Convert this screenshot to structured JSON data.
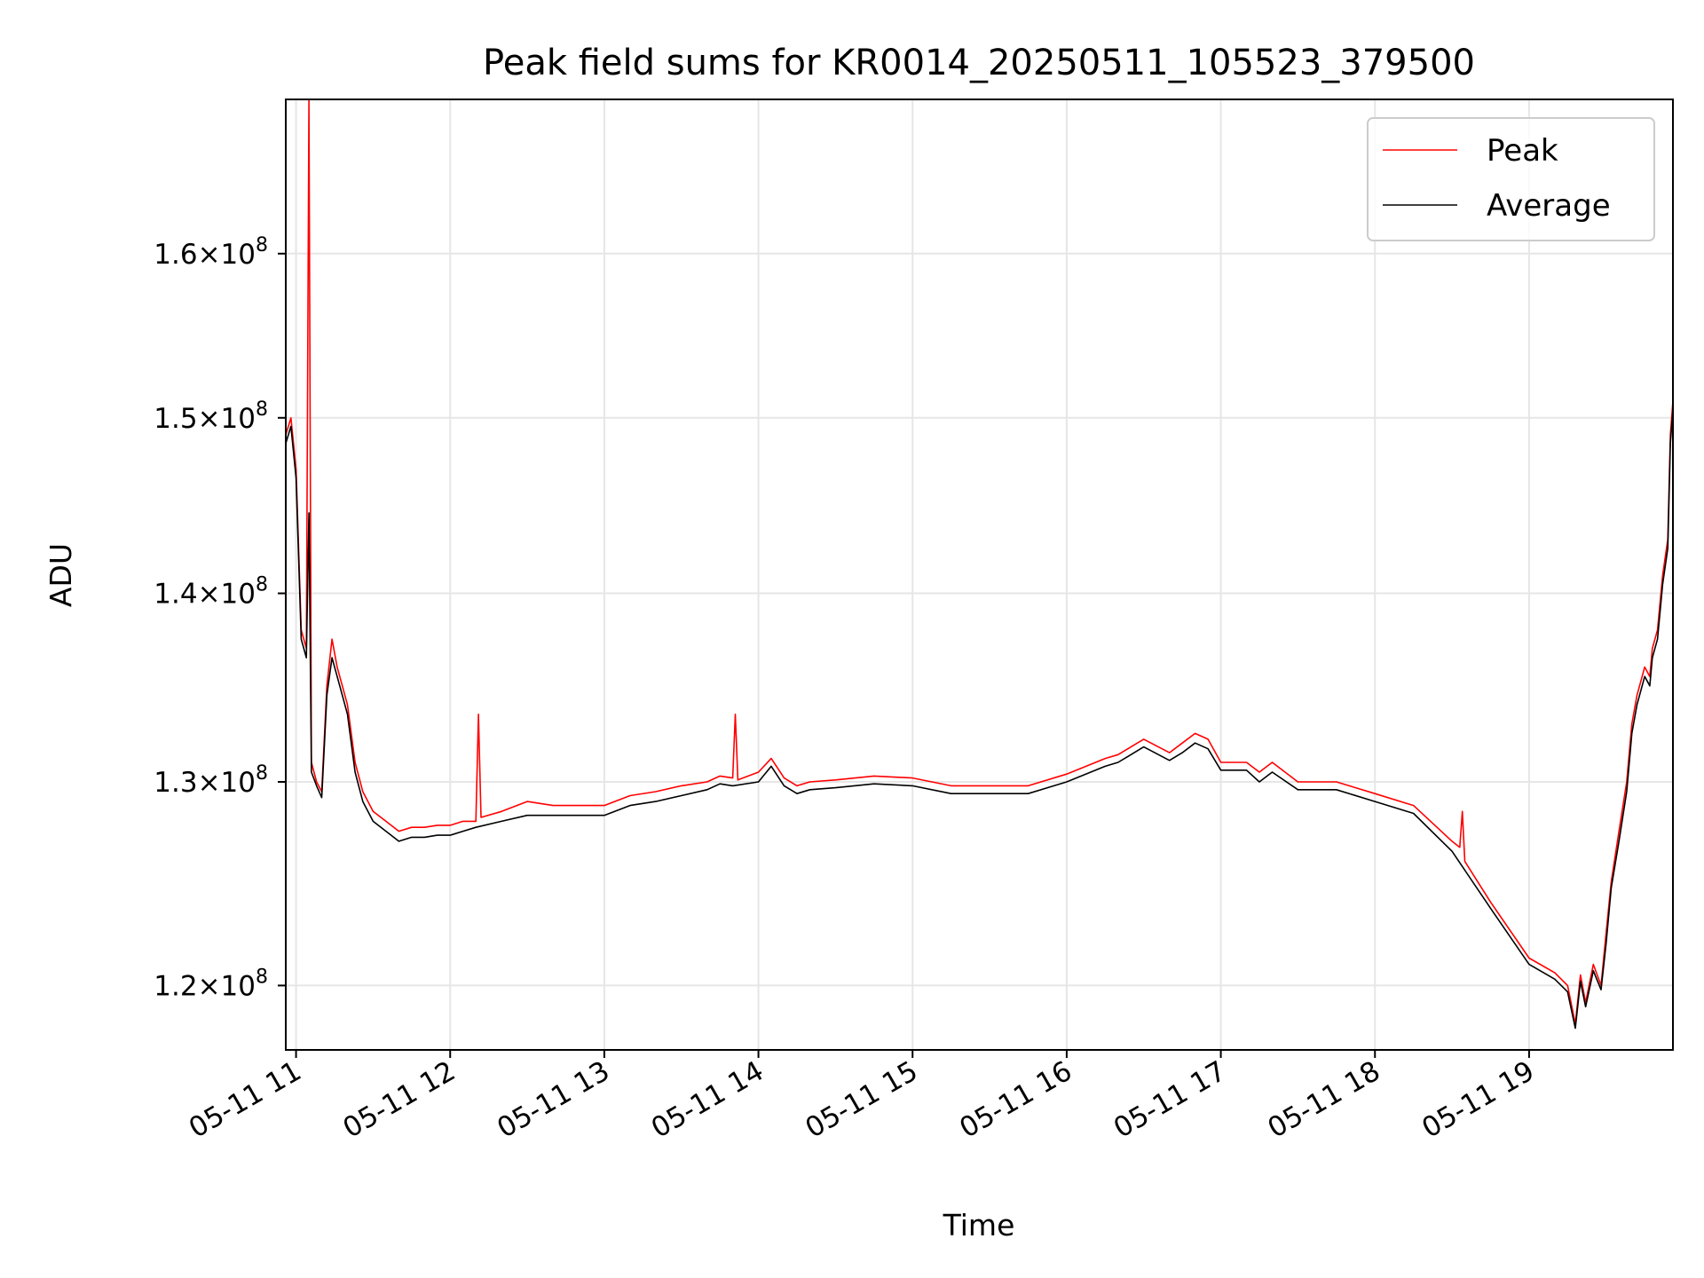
{
  "chart_data": {
    "type": "line",
    "title": "Peak field sums for KR0014_20250511_105523_379500",
    "xlabel": "Time",
    "ylabel": "ADU",
    "y_scale": "log",
    "xlim": [
      "2025-05-11 10:56",
      "2025-05-11 19:56"
    ],
    "ylim": [
      117000000,
      170000000
    ],
    "grid": true,
    "legend_position": "upper right",
    "x_ticks": [
      "05-11 11",
      "05-11 12",
      "05-11 13",
      "05-11 14",
      "05-11 15",
      "05-11 16",
      "05-11 17",
      "05-11 18",
      "05-11 19"
    ],
    "y_ticks": [
      {
        "value": 120000000,
        "mantissa": "1.2",
        "times": "×",
        "base": "10",
        "exp": "8"
      },
      {
        "value": 130000000,
        "mantissa": "1.3",
        "times": "×",
        "base": "10",
        "exp": "8"
      },
      {
        "value": 140000000,
        "mantissa": "1.4",
        "times": "×",
        "base": "10",
        "exp": "8"
      },
      {
        "value": 150000000,
        "mantissa": "1.5",
        "times": "×",
        "base": "10",
        "exp": "8"
      },
      {
        "value": 160000000,
        "mantissa": "1.6",
        "times": "×",
        "base": "10",
        "exp": "8"
      }
    ],
    "series": [
      {
        "name": "Peak",
        "color": "#ff0000",
        "x": [
          "2025-05-11 10:56",
          "2025-05-11 10:58",
          "2025-05-11 11:00",
          "2025-05-11 11:02",
          "2025-05-11 11:03",
          "2025-05-11 11:04",
          "2025-05-11 11:05",
          "2025-05-11 11:06",
          "2025-05-11 11:08",
          "2025-05-11 11:10",
          "2025-05-11 11:12",
          "2025-05-11 11:14",
          "2025-05-11 11:16",
          "2025-05-11 11:18",
          "2025-05-11 11:20",
          "2025-05-11 11:23",
          "2025-05-11 11:26",
          "2025-05-11 11:30",
          "2025-05-11 11:35",
          "2025-05-11 11:40",
          "2025-05-11 11:45",
          "2025-05-11 11:50",
          "2025-05-11 11:55",
          "2025-05-11 12:00",
          "2025-05-11 12:05",
          "2025-05-11 12:10",
          "2025-05-11 12:11",
          "2025-05-11 12:12",
          "2025-05-11 12:20",
          "2025-05-11 12:30",
          "2025-05-11 12:40",
          "2025-05-11 12:50",
          "2025-05-11 13:00",
          "2025-05-11 13:10",
          "2025-05-11 13:20",
          "2025-05-11 13:30",
          "2025-05-11 13:40",
          "2025-05-11 13:45",
          "2025-05-11 13:50",
          "2025-05-11 13:51",
          "2025-05-11 13:52",
          "2025-05-11 14:00",
          "2025-05-11 14:05",
          "2025-05-11 14:10",
          "2025-05-11 14:15",
          "2025-05-11 14:20",
          "2025-05-11 14:30",
          "2025-05-11 14:45",
          "2025-05-11 15:00",
          "2025-05-11 15:15",
          "2025-05-11 15:30",
          "2025-05-11 15:45",
          "2025-05-11 16:00",
          "2025-05-11 16:15",
          "2025-05-11 16:20",
          "2025-05-11 16:25",
          "2025-05-11 16:30",
          "2025-05-11 16:40",
          "2025-05-11 16:45",
          "2025-05-11 16:50",
          "2025-05-11 16:55",
          "2025-05-11 17:00",
          "2025-05-11 17:10",
          "2025-05-11 17:15",
          "2025-05-11 17:20",
          "2025-05-11 17:30",
          "2025-05-11 17:45",
          "2025-05-11 18:00",
          "2025-05-11 18:15",
          "2025-05-11 18:30",
          "2025-05-11 18:33",
          "2025-05-11 18:34",
          "2025-05-11 18:35",
          "2025-05-11 18:45",
          "2025-05-11 19:00",
          "2025-05-11 19:10",
          "2025-05-11 19:15",
          "2025-05-11 19:18",
          "2025-05-11 19:20",
          "2025-05-11 19:22",
          "2025-05-11 19:25",
          "2025-05-11 19:28",
          "2025-05-11 19:30",
          "2025-05-11 19:32",
          "2025-05-11 19:35",
          "2025-05-11 19:38",
          "2025-05-11 19:40",
          "2025-05-11 19:42",
          "2025-05-11 19:45",
          "2025-05-11 19:47",
          "2025-05-11 19:48",
          "2025-05-11 19:50",
          "2025-05-11 19:52",
          "2025-05-11 19:54",
          "2025-05-11 19:55",
          "2025-05-11 19:56"
        ],
        "values": [
          149000000,
          150000000,
          147000000,
          138000000,
          137500000,
          137000000,
          170000000,
          131000000,
          130000000,
          129500000,
          135000000,
          137500000,
          136000000,
          135000000,
          134000000,
          131000000,
          129500000,
          128500000,
          128000000,
          127500000,
          127700000,
          127700000,
          127800000,
          127800000,
          128000000,
          128000000,
          133500000,
          128200000,
          128500000,
          129000000,
          128800000,
          128800000,
          128800000,
          129300000,
          129500000,
          129800000,
          130000000,
          130300000,
          130200000,
          133500000,
          130100000,
          130500000,
          131200000,
          130200000,
          129800000,
          130000000,
          130100000,
          130300000,
          130200000,
          129800000,
          129800000,
          129800000,
          130400000,
          131200000,
          131400000,
          131800000,
          132200000,
          131500000,
          132000000,
          132500000,
          132200000,
          131000000,
          131000000,
          130500000,
          131000000,
          130000000,
          130000000,
          129400000,
          128800000,
          127000000,
          126700000,
          128500000,
          126000000,
          124000000,
          121300000,
          120600000,
          120000000,
          118200000,
          120500000,
          119200000,
          121000000,
          120000000,
          122500000,
          125000000,
          127500000,
          130000000,
          133000000,
          134500000,
          136000000,
          135500000,
          137000000,
          138000000,
          141000000,
          143000000,
          149000000,
          151000000
        ]
      },
      {
        "name": "Average",
        "color": "#000000",
        "x": [
          "2025-05-11 10:56",
          "2025-05-11 10:58",
          "2025-05-11 11:00",
          "2025-05-11 11:02",
          "2025-05-11 11:03",
          "2025-05-11 11:04",
          "2025-05-11 11:05",
          "2025-05-11 11:06",
          "2025-05-11 11:08",
          "2025-05-11 11:10",
          "2025-05-11 11:12",
          "2025-05-11 11:14",
          "2025-05-11 11:16",
          "2025-05-11 11:18",
          "2025-05-11 11:20",
          "2025-05-11 11:23",
          "2025-05-11 11:26",
          "2025-05-11 11:30",
          "2025-05-11 11:35",
          "2025-05-11 11:40",
          "2025-05-11 11:45",
          "2025-05-11 11:50",
          "2025-05-11 11:55",
          "2025-05-11 12:00",
          "2025-05-11 12:05",
          "2025-05-11 12:10",
          "2025-05-11 12:20",
          "2025-05-11 12:30",
          "2025-05-11 12:40",
          "2025-05-11 12:50",
          "2025-05-11 13:00",
          "2025-05-11 13:10",
          "2025-05-11 13:20",
          "2025-05-11 13:30",
          "2025-05-11 13:40",
          "2025-05-11 13:45",
          "2025-05-11 13:50",
          "2025-05-11 14:00",
          "2025-05-11 14:05",
          "2025-05-11 14:10",
          "2025-05-11 14:15",
          "2025-05-11 14:20",
          "2025-05-11 14:30",
          "2025-05-11 14:45",
          "2025-05-11 15:00",
          "2025-05-11 15:15",
          "2025-05-11 15:30",
          "2025-05-11 15:45",
          "2025-05-11 16:00",
          "2025-05-11 16:15",
          "2025-05-11 16:20",
          "2025-05-11 16:25",
          "2025-05-11 16:30",
          "2025-05-11 16:40",
          "2025-05-11 16:45",
          "2025-05-11 16:50",
          "2025-05-11 16:55",
          "2025-05-11 17:00",
          "2025-05-11 17:10",
          "2025-05-11 17:15",
          "2025-05-11 17:20",
          "2025-05-11 17:30",
          "2025-05-11 17:45",
          "2025-05-11 18:00",
          "2025-05-11 18:15",
          "2025-05-11 18:30",
          "2025-05-11 18:45",
          "2025-05-11 19:00",
          "2025-05-11 19:10",
          "2025-05-11 19:15",
          "2025-05-11 19:18",
          "2025-05-11 19:20",
          "2025-05-11 19:22",
          "2025-05-11 19:25",
          "2025-05-11 19:28",
          "2025-05-11 19:30",
          "2025-05-11 19:32",
          "2025-05-11 19:35",
          "2025-05-11 19:38",
          "2025-05-11 19:40",
          "2025-05-11 19:42",
          "2025-05-11 19:45",
          "2025-05-11 19:47",
          "2025-05-11 19:48",
          "2025-05-11 19:50",
          "2025-05-11 19:52",
          "2025-05-11 19:54",
          "2025-05-11 19:55",
          "2025-05-11 19:56"
        ],
        "values": [
          148500000,
          149500000,
          146500000,
          137500000,
          137000000,
          136500000,
          144500000,
          130500000,
          129800000,
          129200000,
          134500000,
          136500000,
          135500000,
          134500000,
          133500000,
          130500000,
          129000000,
          128000000,
          127500000,
          127000000,
          127200000,
          127200000,
          127300000,
          127300000,
          127500000,
          127700000,
          128000000,
          128300000,
          128300000,
          128300000,
          128300000,
          128800000,
          129000000,
          129300000,
          129600000,
          129900000,
          129800000,
          130000000,
          130800000,
          129800000,
          129400000,
          129600000,
          129700000,
          129900000,
          129800000,
          129400000,
          129400000,
          129400000,
          130000000,
          130800000,
          131000000,
          131400000,
          131800000,
          131100000,
          131500000,
          132000000,
          131700000,
          130600000,
          130600000,
          130000000,
          130500000,
          129600000,
          129600000,
          129000000,
          128400000,
          126500000,
          123700000,
          121000000,
          120300000,
          119700000,
          118000000,
          120200000,
          119000000,
          120700000,
          119800000,
          122000000,
          124700000,
          127000000,
          129500000,
          132500000,
          134000000,
          135500000,
          135000000,
          136500000,
          137500000,
          140500000,
          142500000,
          148500000,
          150500000
        ]
      }
    ]
  }
}
